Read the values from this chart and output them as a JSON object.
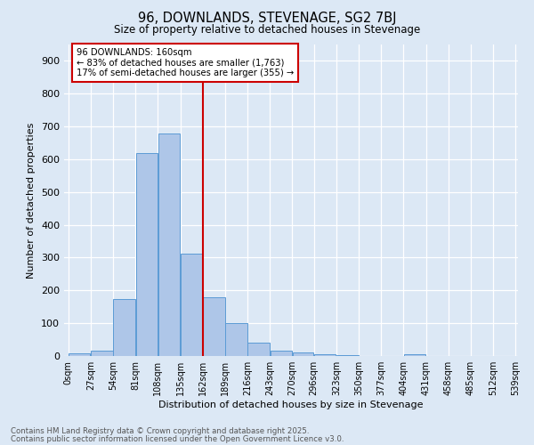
{
  "title1": "96, DOWNLANDS, STEVENAGE, SG2 7BJ",
  "title2": "Size of property relative to detached houses in Stevenage",
  "xlabel": "Distribution of detached houses by size in Stevenage",
  "ylabel": "Number of detached properties",
  "bar_edges": [
    0,
    27,
    54,
    81,
    108,
    135,
    162,
    189,
    216,
    243,
    270,
    296,
    323,
    350,
    377,
    404,
    431,
    458,
    485,
    512,
    539
  ],
  "bar_heights": [
    8,
    15,
    175,
    620,
    678,
    312,
    180,
    100,
    42,
    15,
    12,
    5,
    2,
    0,
    0,
    5,
    0,
    0,
    0,
    0
  ],
  "tick_labels": [
    "0sqm",
    "27sqm",
    "54sqm",
    "81sqm",
    "108sqm",
    "135sqm",
    "162sqm",
    "189sqm",
    "216sqm",
    "243sqm",
    "270sqm",
    "296sqm",
    "323sqm",
    "350sqm",
    "377sqm",
    "404sqm",
    "431sqm",
    "458sqm",
    "485sqm",
    "512sqm",
    "539sqm"
  ],
  "bar_color": "#aec6e8",
  "bar_edge_color": "#5b9bd5",
  "vline_x": 162,
  "vline_color": "#cc0000",
  "annotation_text": "96 DOWNLANDS: 160sqm\n← 83% of detached houses are smaller (1,763)\n17% of semi-detached houses are larger (355) →",
  "annotation_box_color": "#cc0000",
  "ylim": [
    0,
    950
  ],
  "yticks": [
    0,
    100,
    200,
    300,
    400,
    500,
    600,
    700,
    800,
    900
  ],
  "background_color": "#dce8f5",
  "plot_bg_color": "#dce8f5",
  "fig_bg_color": "#dce8f5",
  "grid_color": "#ffffff",
  "footer_line1": "Contains HM Land Registry data © Crown copyright and database right 2025.",
  "footer_line2": "Contains public sector information licensed under the Open Government Licence v3.0."
}
